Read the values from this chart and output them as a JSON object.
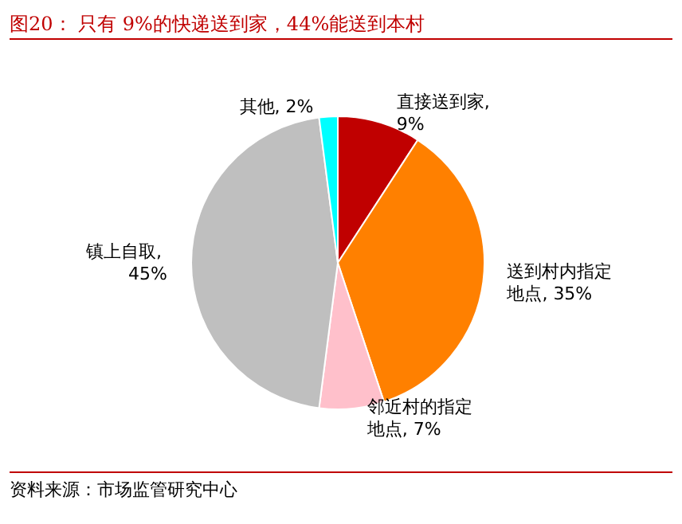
{
  "chart_data": {
    "type": "pie",
    "title": "图20：  只有 9%的快递送到家，44%能送到本村",
    "categories": [
      "直接送到家",
      "送到村内指定地点",
      "邻近村的指定地点",
      "镇上自取",
      "其他"
    ],
    "values": [
      9,
      35,
      7,
      45,
      2
    ],
    "colors": [
      "#c00000",
      "#ff8000",
      "#ffc0cb",
      "#bfbfbf",
      "#00ffff"
    ],
    "value_labels": [
      ", 9%",
      ", 35%",
      ", 7%",
      ", 45%",
      ", 2%"
    ],
    "legend": false,
    "annotations": [
      "资料来源：市场监管研究中心"
    ]
  }
}
